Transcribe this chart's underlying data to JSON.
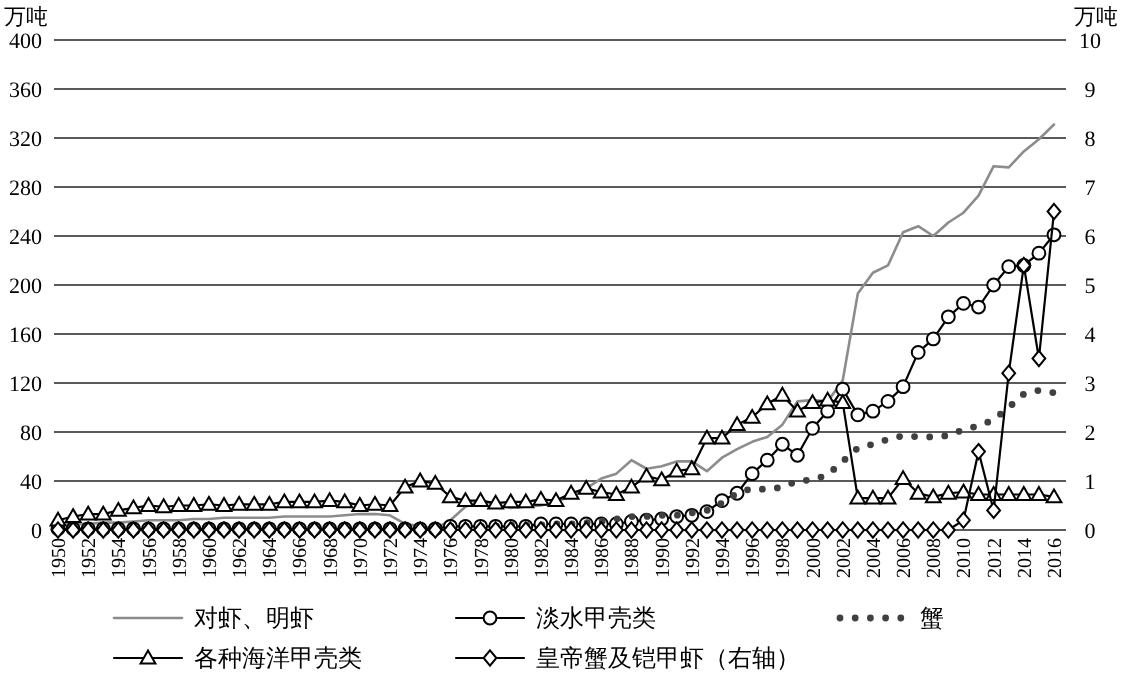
{
  "chart_data": {
    "type": "line",
    "ylabel": "万吨",
    "y2label": "万吨",
    "categories": [
      "1950",
      null,
      "1952",
      null,
      "1954",
      null,
      "1956",
      null,
      "1958",
      null,
      "1960",
      null,
      "1962",
      null,
      "1964",
      null,
      "1966",
      null,
      "1968",
      null,
      "1970",
      null,
      "1972",
      null,
      "1974",
      null,
      "1976",
      null,
      "1978",
      null,
      "1980",
      null,
      "1982",
      null,
      "1984",
      null,
      "1986",
      null,
      "1988",
      null,
      "1990",
      null,
      "1992",
      null,
      "1994",
      null,
      "1996",
      null,
      "1998",
      null,
      "2000",
      null,
      "2002",
      null,
      "2004",
      null,
      "2006",
      null,
      "2008",
      null,
      "2010",
      null,
      "2012",
      null,
      "2014",
      null,
      "2016"
    ],
    "ylim": [
      0,
      400
    ],
    "yticks": [
      0,
      40,
      80,
      120,
      160,
      200,
      240,
      280,
      320,
      360,
      400
    ],
    "y2lim": [
      0,
      10
    ],
    "y2ticks": [
      0,
      1,
      2,
      3,
      4,
      5,
      6,
      7,
      8,
      9,
      10
    ],
    "grid": "y",
    "legend": "bottom",
    "series": [
      {
        "name": "对虾、明虾",
        "color": "#8c8c8c",
        "marker": "none",
        "line_style": "solid",
        "values": [
          4,
          5,
          5,
          6,
          6,
          7,
          8,
          8,
          8,
          9,
          9,
          10,
          10,
          10,
          10,
          11,
          11,
          11,
          11,
          12,
          13,
          13,
          12,
          5,
          3,
          1,
          8,
          19,
          24,
          21,
          18,
          19,
          20,
          23,
          28,
          34,
          42,
          46,
          57,
          50,
          52,
          56,
          56,
          48,
          59,
          66,
          72,
          76,
          86,
          105,
          106,
          105,
          122,
          193,
          210,
          216,
          243,
          248,
          240,
          251,
          259,
          273,
          297,
          296,
          309,
          319,
          331
        ]
      },
      {
        "name": "淡水甲壳类",
        "color": "#000000",
        "marker": "circle",
        "line_style": "solid",
        "values": [
          1,
          1,
          1,
          1,
          1,
          1,
          1,
          1,
          1,
          1,
          1,
          1,
          1,
          1,
          1,
          1,
          1,
          1,
          1,
          1,
          1,
          1,
          1,
          1,
          1,
          1,
          3,
          3,
          3,
          3,
          3,
          3,
          5,
          5,
          5,
          5,
          5,
          5,
          7,
          8,
          9,
          11,
          12,
          15,
          24,
          30,
          46,
          57,
          70,
          61,
          83,
          97,
          115,
          94,
          97,
          105,
          117,
          145,
          156,
          174,
          185,
          182,
          200,
          215,
          216,
          226,
          241
        ]
      },
      {
        "name": "蟹",
        "color": "#404040",
        "marker": "none",
        "line_style": "dotted",
        "values": [
          1,
          1,
          1,
          1,
          1,
          1,
          1,
          1,
          1,
          1,
          1,
          1,
          1,
          1,
          1,
          1,
          1,
          1,
          1,
          1,
          1,
          1,
          1,
          1,
          1,
          2,
          3,
          3,
          3,
          3,
          4,
          4,
          4,
          5,
          5,
          6,
          7,
          9,
          11,
          11,
          12,
          12,
          14,
          16,
          22,
          30,
          34,
          33,
          35,
          40,
          41,
          45,
          56,
          67,
          70,
          74,
          77,
          76,
          76,
          77,
          82,
          85,
          90,
          100,
          111,
          114,
          112
        ]
      },
      {
        "name": "各种海洋甲壳类",
        "color": "#000000",
        "marker": "triangle",
        "line_style": "solid",
        "values": [
          8,
          11,
          13,
          13,
          16,
          18,
          20,
          19,
          20,
          20,
          21,
          20,
          21,
          21,
          21,
          23,
          23,
          23,
          24,
          23,
          20,
          21,
          20,
          35,
          40,
          38,
          27,
          24,
          24,
          22,
          23,
          23,
          25,
          24,
          30,
          34,
          31,
          29,
          35,
          44,
          41,
          48,
          50,
          75,
          75,
          86,
          92,
          103,
          110,
          97,
          104,
          106,
          104,
          26,
          26,
          26,
          42,
          30,
          27,
          30,
          31,
          29,
          29,
          29,
          29,
          29,
          27
        ]
      },
      {
        "name": "皇帝蟹及铠甲虾（右轴）",
        "color": "#000000",
        "marker": "diamond",
        "line_style": "solid",
        "axis": "y2",
        "values": [
          0,
          0,
          0,
          0,
          0,
          0,
          0,
          0,
          0,
          0,
          0,
          0,
          0,
          0,
          0,
          0,
          0,
          0,
          0,
          0,
          0,
          0,
          0,
          0,
          0,
          0,
          0,
          0,
          0,
          0,
          0,
          0,
          0,
          0,
          0,
          0,
          0,
          0,
          0,
          0,
          0,
          0,
          0,
          0,
          0,
          0,
          0,
          0,
          0,
          0,
          0,
          0,
          0,
          0,
          0,
          0,
          0,
          0,
          0,
          0,
          0.2,
          1.6,
          0.4,
          3.2,
          5.4,
          3.5,
          6.5
        ]
      }
    ]
  }
}
